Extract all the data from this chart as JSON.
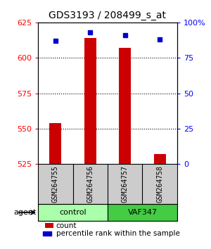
{
  "title": "GDS3193 / 208499_s_at",
  "samples": [
    "GSM264755",
    "GSM264756",
    "GSM264757",
    "GSM264758"
  ],
  "count_values": [
    554,
    614,
    607,
    532
  ],
  "percentile_values": [
    87,
    93,
    91,
    88
  ],
  "groups": [
    "control",
    "control",
    "VAF347",
    "VAF347"
  ],
  "ylim_left": [
    525,
    625
  ],
  "yticks_left": [
    525,
    550,
    575,
    600,
    625
  ],
  "ylim_right": [
    0,
    100
  ],
  "yticks_right": [
    0,
    25,
    50,
    75,
    100
  ],
  "ytick_labels_right": [
    "0",
    "25",
    "50",
    "75",
    "100%"
  ],
  "bar_color": "#cc0000",
  "dot_color": "#0000cc",
  "grid_color": "#000000",
  "bg_color": "#ffffff",
  "group_colors": {
    "control": "#aaffaa",
    "VAF347": "#44cc44"
  },
  "sample_bg": "#cccccc"
}
